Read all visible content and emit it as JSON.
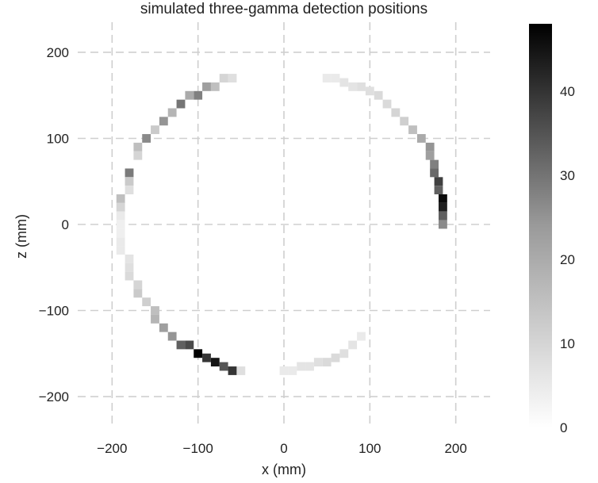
{
  "chart_data": {
    "type": "heatmap",
    "title": "simulated three-gamma detection positions",
    "xlabel": "x (mm)",
    "ylabel": "z (mm)",
    "xlim": [
      -240,
      240
    ],
    "ylim": [
      -235,
      235
    ],
    "xticks": [
      -200,
      -100,
      0,
      100,
      200
    ],
    "yticks": [
      -200,
      -100,
      0,
      100,
      200
    ],
    "grid": true,
    "colormap": "white-to-black",
    "colorbar": {
      "min": 0,
      "max": 48,
      "ticks": [
        0,
        10,
        20,
        30,
        40
      ]
    },
    "bin_size_mm": 10,
    "cells": [
      {
        "x": -60,
        "z": 170,
        "count": 6
      },
      {
        "x": -70,
        "z": 170,
        "count": 8
      },
      {
        "x": -80,
        "z": 160,
        "count": 12
      },
      {
        "x": -90,
        "z": 160,
        "count": 18
      },
      {
        "x": -100,
        "z": 150,
        "count": 24
      },
      {
        "x": -110,
        "z": 150,
        "count": 16
      },
      {
        "x": -120,
        "z": 140,
        "count": 26
      },
      {
        "x": -130,
        "z": 130,
        "count": 14
      },
      {
        "x": -140,
        "z": 120,
        "count": 20
      },
      {
        "x": -150,
        "z": 110,
        "count": 10
      },
      {
        "x": -160,
        "z": 100,
        "count": 22
      },
      {
        "x": -170,
        "z": 90,
        "count": 12
      },
      {
        "x": -170,
        "z": 80,
        "count": 8
      },
      {
        "x": -180,
        "z": 60,
        "count": 25
      },
      {
        "x": -180,
        "z": 50,
        "count": 10
      },
      {
        "x": -180,
        "z": 40,
        "count": 6
      },
      {
        "x": -190,
        "z": 30,
        "count": 12
      },
      {
        "x": -190,
        "z": 20,
        "count": 8
      },
      {
        "x": -190,
        "z": 10,
        "count": 4
      },
      {
        "x": -190,
        "z": 0,
        "count": 3
      },
      {
        "x": -190,
        "z": -10,
        "count": 3
      },
      {
        "x": -190,
        "z": -20,
        "count": 4
      },
      {
        "x": -190,
        "z": -30,
        "count": 4
      },
      {
        "x": -180,
        "z": -40,
        "count": 5
      },
      {
        "x": -180,
        "z": -50,
        "count": 6
      },
      {
        "x": -180,
        "z": -60,
        "count": 7
      },
      {
        "x": -170,
        "z": -70,
        "count": 8
      },
      {
        "x": -170,
        "z": -80,
        "count": 10
      },
      {
        "x": -160,
        "z": -90,
        "count": 9
      },
      {
        "x": -150,
        "z": -100,
        "count": 12
      },
      {
        "x": -150,
        "z": -110,
        "count": 14
      },
      {
        "x": -140,
        "z": -120,
        "count": 18
      },
      {
        "x": -130,
        "z": -130,
        "count": 20
      },
      {
        "x": -120,
        "z": -140,
        "count": 30
      },
      {
        "x": -110,
        "z": -140,
        "count": 34
      },
      {
        "x": -100,
        "z": -150,
        "count": 48
      },
      {
        "x": -90,
        "z": -155,
        "count": 38
      },
      {
        "x": -80,
        "z": -160,
        "count": 44
      },
      {
        "x": -70,
        "z": -165,
        "count": 32
      },
      {
        "x": -60,
        "z": -170,
        "count": 38
      },
      {
        "x": -50,
        "z": -170,
        "count": 6
      },
      {
        "x": 50,
        "z": 170,
        "count": 4
      },
      {
        "x": 60,
        "z": 170,
        "count": 4
      },
      {
        "x": 70,
        "z": 165,
        "count": 5
      },
      {
        "x": 80,
        "z": 160,
        "count": 5
      },
      {
        "x": 90,
        "z": 160,
        "count": 6
      },
      {
        "x": 100,
        "z": 155,
        "count": 6
      },
      {
        "x": 110,
        "z": 150,
        "count": 7
      },
      {
        "x": 120,
        "z": 140,
        "count": 7
      },
      {
        "x": 130,
        "z": 130,
        "count": 8
      },
      {
        "x": 140,
        "z": 120,
        "count": 9
      },
      {
        "x": 150,
        "z": 110,
        "count": 12
      },
      {
        "x": 160,
        "z": 100,
        "count": 16
      },
      {
        "x": 170,
        "z": 90,
        "count": 20
      },
      {
        "x": 170,
        "z": 80,
        "count": 18
      },
      {
        "x": 175,
        "z": 70,
        "count": 24
      },
      {
        "x": 175,
        "z": 60,
        "count": 28
      },
      {
        "x": 180,
        "z": 50,
        "count": 36
      },
      {
        "x": 180,
        "z": 40,
        "count": 30
      },
      {
        "x": 185,
        "z": 30,
        "count": 46
      },
      {
        "x": 185,
        "z": 20,
        "count": 42
      },
      {
        "x": 185,
        "z": 10,
        "count": 30
      },
      {
        "x": 185,
        "z": 0,
        "count": 22
      },
      {
        "x": 0,
        "z": -170,
        "count": 4
      },
      {
        "x": 10,
        "z": -170,
        "count": 4
      },
      {
        "x": 20,
        "z": -165,
        "count": 5
      },
      {
        "x": 30,
        "z": -165,
        "count": 5
      },
      {
        "x": 40,
        "z": -160,
        "count": 6
      },
      {
        "x": 50,
        "z": -160,
        "count": 7
      },
      {
        "x": 60,
        "z": -155,
        "count": 7
      },
      {
        "x": 70,
        "z": -150,
        "count": 6
      },
      {
        "x": 80,
        "z": -140,
        "count": 5
      },
      {
        "x": 90,
        "z": -130,
        "count": 4
      }
    ]
  }
}
